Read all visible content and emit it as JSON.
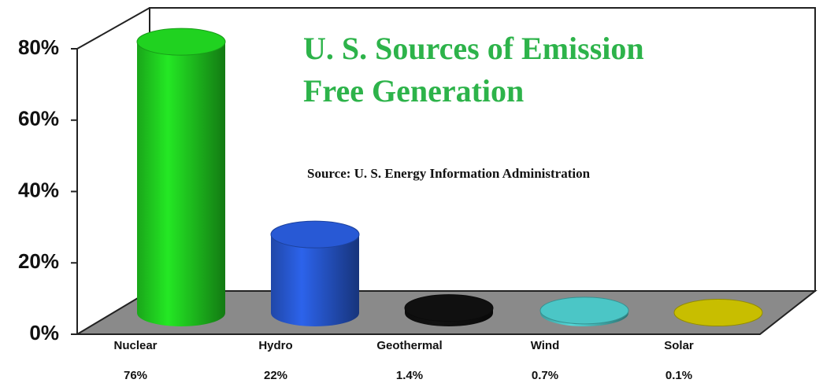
{
  "chart_data": {
    "type": "bar3d",
    "title_lines": [
      "U. S. Sources of Emission",
      "Free Generation"
    ],
    "subtitle": "Source: U. S. Energy Information Administration",
    "categories": [
      "Nuclear",
      "Hydro",
      "Geothermal",
      "Wind",
      "Solar"
    ],
    "values": [
      76,
      22,
      1.4,
      0.7,
      0.1
    ],
    "value_labels": [
      "76%",
      "22%",
      "1.4%",
      "0.7%",
      "0.1%"
    ],
    "colors": [
      "#22dd22",
      "#2a5ee0",
      "#111111",
      "#4fd0d0",
      "#d2c800"
    ],
    "ylim": [
      0,
      80
    ],
    "yticks": [
      {
        "value": 0,
        "label": "0%"
      },
      {
        "value": 20,
        "label": "20%"
      },
      {
        "value": 40,
        "label": "40%"
      },
      {
        "value": 60,
        "label": "60%"
      },
      {
        "value": 80,
        "label": "80%"
      }
    ]
  }
}
